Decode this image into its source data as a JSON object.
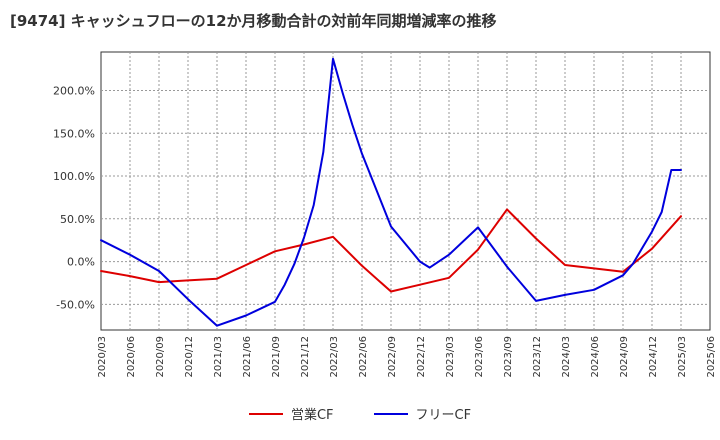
{
  "chart_data": {
    "type": "line",
    "title": "[9474]  キャッシュフローの12か月移動合計の対前年同期増減率の推移",
    "ylim": [
      -80,
      245
    ],
    "yticks": [
      "-50.0%",
      "0.0%",
      "50.0%",
      "100.0%",
      "150.0%",
      "200.0%"
    ],
    "ytick_values": [
      -50,
      0,
      50,
      100,
      150,
      200
    ],
    "xticks": [
      "2020/03",
      "2020/06",
      "2020/09",
      "2020/12",
      "2021/03",
      "2021/06",
      "2021/09",
      "2021/12",
      "2022/03",
      "2022/06",
      "2022/09",
      "2022/12",
      "2023/03",
      "2023/06",
      "2023/09",
      "2023/12",
      "2024/03",
      "2024/06",
      "2024/09",
      "2024/12",
      "2025/03",
      "2025/06"
    ],
    "grid": true,
    "legend_position": "bottom",
    "series": [
      {
        "name": "営業CF",
        "color": "#dd0000",
        "x": [
          "2020/03",
          "2020/06",
          "2020/09",
          "2020/12",
          "2021/03",
          "2021/06",
          "2021/09",
          "2021/12",
          "2022/03",
          "2022/06",
          "2022/09",
          "2022/12",
          "2023/03",
          "2023/06",
          "2023/09",
          "2023/12",
          "2024/03",
          "2024/06",
          "2024/09",
          "2024/12",
          "2025/03"
        ],
        "values": [
          -11,
          -17,
          -24,
          -22,
          -20,
          -4,
          12,
          20,
          29,
          -5,
          -35,
          -27,
          -19,
          14,
          61,
          27,
          -4,
          -8,
          -12,
          15,
          53
        ]
      },
      {
        "name": "フリーCF",
        "color": "#0000dd",
        "x": [
          "2020/03",
          "2020/06",
          "2020/09",
          "2020/12",
          "2021/03",
          "2021/06",
          "2021/09",
          "2021/10",
          "2021/11",
          "2021/12",
          "2022/01",
          "2022/02",
          "2022/03",
          "2022/04",
          "2022/05",
          "2022/06",
          "2022/09",
          "2022/12",
          "2023/01",
          "2023/03",
          "2023/06",
          "2023/09",
          "2023/12",
          "2024/03",
          "2024/06",
          "2024/09",
          "2024/10",
          "2024/11",
          "2024/12",
          "2025/01",
          "2025/02",
          "2025/03"
        ],
        "values": [
          25,
          8,
          -11,
          -44,
          -75,
          -63,
          -47,
          -27,
          -3,
          28,
          66,
          128,
          237,
          197,
          160,
          126,
          41,
          0,
          -7,
          8,
          40,
          -6,
          -46,
          -39,
          -33,
          -16,
          -3,
          16,
          35,
          58,
          107,
          107
        ]
      }
    ]
  }
}
